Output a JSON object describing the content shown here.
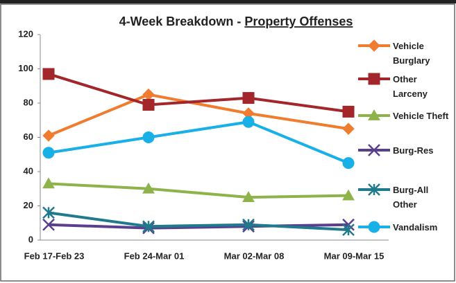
{
  "chart_data": {
    "type": "line",
    "title_parts": [
      "4-Week Breakdown -",
      "Property Offenses"
    ],
    "categories": [
      "Feb 17-Feb 23",
      "Feb 24-Mar 01",
      "Mar 02-Mar 08",
      "Mar 09-Mar 15"
    ],
    "series": [
      {
        "name": "Vehicle Burglary",
        "color": "#f07c30",
        "marker": "diamond",
        "values": [
          61,
          85,
          74,
          65
        ]
      },
      {
        "name": "Other Larceny",
        "color": "#a3262a",
        "marker": "square",
        "values": [
          97,
          79,
          83,
          75
        ]
      },
      {
        "name": "Vehicle Theft",
        "color": "#8db34a",
        "marker": "triangle",
        "values": [
          33,
          30,
          25,
          26
        ]
      },
      {
        "name": "Burg-Res",
        "color": "#5b3f8f",
        "marker": "x",
        "values": [
          9,
          7,
          8,
          9
        ]
      },
      {
        "name": "Burg-All Other",
        "color": "#1f7a8c",
        "marker": "star",
        "values": [
          16,
          8,
          9,
          6
        ]
      },
      {
        "name": "Vandalism",
        "color": "#19b0e8",
        "marker": "circle",
        "values": [
          51,
          60,
          69,
          45
        ]
      }
    ],
    "ylim": [
      0,
      120
    ],
    "yticks": [
      0,
      20,
      40,
      60,
      80,
      100,
      120
    ],
    "legend": "right"
  }
}
